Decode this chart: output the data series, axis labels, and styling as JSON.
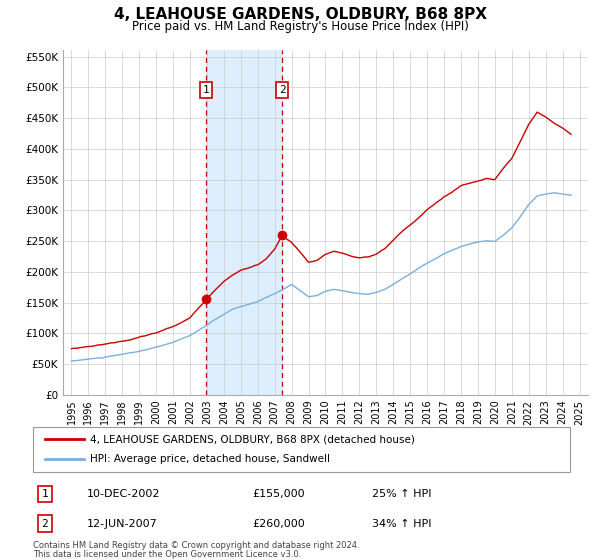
{
  "title": "4, LEAHOUSE GARDENS, OLDBURY, B68 8PX",
  "subtitle": "Price paid vs. HM Land Registry's House Price Index (HPI)",
  "legend_line1": "4, LEAHOUSE GARDENS, OLDBURY, B68 8PX (detached house)",
  "legend_line2": "HPI: Average price, detached house, Sandwell",
  "footer1": "Contains HM Land Registry data © Crown copyright and database right 2024.",
  "footer2": "This data is licensed under the Open Government Licence v3.0.",
  "sale1_label": "1",
  "sale1_date": "10-DEC-2002",
  "sale1_price": "£155,000",
  "sale1_hpi": "25% ↑ HPI",
  "sale2_label": "2",
  "sale2_date": "12-JUN-2007",
  "sale2_price": "£260,000",
  "sale2_hpi": "34% ↑ HPI",
  "sale1_x": 2002.95,
  "sale1_y": 155000,
  "sale2_x": 2007.45,
  "sale2_y": 260000,
  "vline1_x": 2002.95,
  "vline2_x": 2007.45,
  "shade_x1": 2002.95,
  "shade_x2": 2007.45,
  "hpi_color": "#7ab0de",
  "price_color": "#cc0000",
  "shade_color": "#ddeeff",
  "vline_color": "#cc0000",
  "ylim_min": 0,
  "ylim_max": 560000,
  "xlim_min": 1994.5,
  "xlim_max": 2025.5,
  "yticks": [
    0,
    50000,
    100000,
    150000,
    200000,
    250000,
    300000,
    350000,
    400000,
    450000,
    500000,
    550000
  ],
  "ytick_labels": [
    "£0",
    "£50K",
    "£100K",
    "£150K",
    "£200K",
    "£250K",
    "£300K",
    "£350K",
    "£400K",
    "£450K",
    "£500K",
    "£550K"
  ],
  "xticks": [
    1995,
    1996,
    1997,
    1998,
    1999,
    2000,
    2001,
    2002,
    2003,
    2004,
    2005,
    2006,
    2007,
    2008,
    2009,
    2010,
    2011,
    2012,
    2013,
    2014,
    2015,
    2016,
    2017,
    2018,
    2019,
    2020,
    2021,
    2022,
    2023,
    2024,
    2025
  ]
}
